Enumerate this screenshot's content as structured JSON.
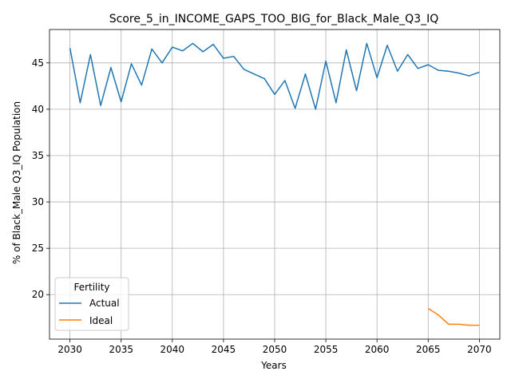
{
  "chart_data": {
    "type": "line",
    "title": "Score_5_in_INCOME_GAPS_TOO_BIG_for_Black_Male_Q3_IQ",
    "xlabel": "Years",
    "ylabel": "% of Black_Male Q3_IQ Population",
    "xlim": [
      2028,
      2072
    ],
    "ylim": [
      15.2,
      48.6
    ],
    "xticks": [
      2030,
      2035,
      2040,
      2045,
      2050,
      2055,
      2060,
      2065,
      2070
    ],
    "yticks": [
      20,
      25,
      30,
      35,
      40,
      45
    ],
    "grid": true,
    "legend": {
      "title": "Fertility",
      "placement": "lower-left"
    },
    "series": [
      {
        "name": "Actual",
        "color": "#1f77b4",
        "x": [
          2030,
          2031,
          2032,
          2033,
          2034,
          2035,
          2036,
          2037,
          2038,
          2039,
          2040,
          2041,
          2042,
          2043,
          2044,
          2045,
          2046,
          2047,
          2048,
          2049,
          2050,
          2051,
          2052,
          2053,
          2054,
          2055,
          2056,
          2057,
          2058,
          2059,
          2060,
          2061,
          2062,
          2063,
          2064,
          2065,
          2066,
          2067,
          2068,
          2069,
          2070
        ],
        "values": [
          46.6,
          40.7,
          45.9,
          40.4,
          44.5,
          40.8,
          44.9,
          42.6,
          46.5,
          45.0,
          46.7,
          46.3,
          47.1,
          46.2,
          47.0,
          45.5,
          45.7,
          44.3,
          43.8,
          43.3,
          41.6,
          43.1,
          40.1,
          43.8,
          40.0,
          45.2,
          40.7,
          46.4,
          42.0,
          47.1,
          43.4,
          46.9,
          44.1,
          45.9,
          44.4,
          44.8,
          44.2,
          44.1,
          43.9,
          43.6,
          44.0
        ]
      },
      {
        "name": "Ideal",
        "color": "#ff7f0e",
        "x": [
          2065,
          2066,
          2067,
          2068,
          2069,
          2070
        ],
        "values": [
          18.5,
          17.8,
          16.8,
          16.8,
          16.7,
          16.7
        ]
      }
    ]
  }
}
